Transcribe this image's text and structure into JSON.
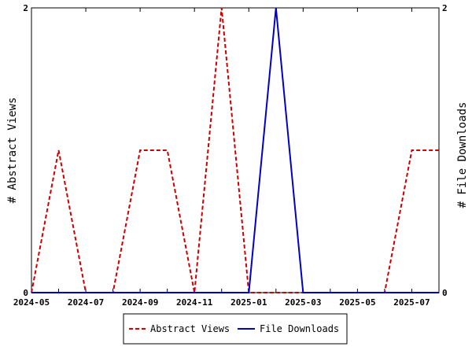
{
  "chart_data": {
    "type": "line",
    "x": [
      "2024-05",
      "2024-06",
      "2024-07",
      "2024-08",
      "2024-09",
      "2024-10",
      "2024-11",
      "2024-12",
      "2025-01",
      "2025-02",
      "2025-03",
      "2025-04",
      "2025-05",
      "2025-06",
      "2025-07",
      "2025-08"
    ],
    "x_tick_labels": [
      "2024-05",
      "2024-07",
      "2024-09",
      "2024-11",
      "2025-01",
      "2025-03",
      "2025-05",
      "2025-07"
    ],
    "series": [
      {
        "name": "Abstract Views",
        "axis": "left",
        "color": "#cc0000",
        "dash": "dashed",
        "values": [
          0,
          1,
          0,
          0,
          1,
          1,
          0,
          2,
          0,
          0,
          0,
          0,
          0,
          0,
          1,
          1
        ]
      },
      {
        "name": "File Downloads",
        "axis": "right",
        "color": "#0000cc",
        "dash": "solid",
        "values": [
          0,
          0,
          0,
          0,
          0,
          0,
          0,
          0,
          0,
          2,
          0,
          0,
          0,
          0,
          0,
          0
        ]
      }
    ],
    "ylabel": "# Abstract Views",
    "y2label": "# File Downloads",
    "ylim": [
      0,
      2
    ],
    "y2lim": [
      0,
      2
    ],
    "y_ticks": [
      "0",
      "2"
    ],
    "y2_ticks": [
      "0",
      "2"
    ],
    "grid": false,
    "legend_position": "bottom"
  }
}
